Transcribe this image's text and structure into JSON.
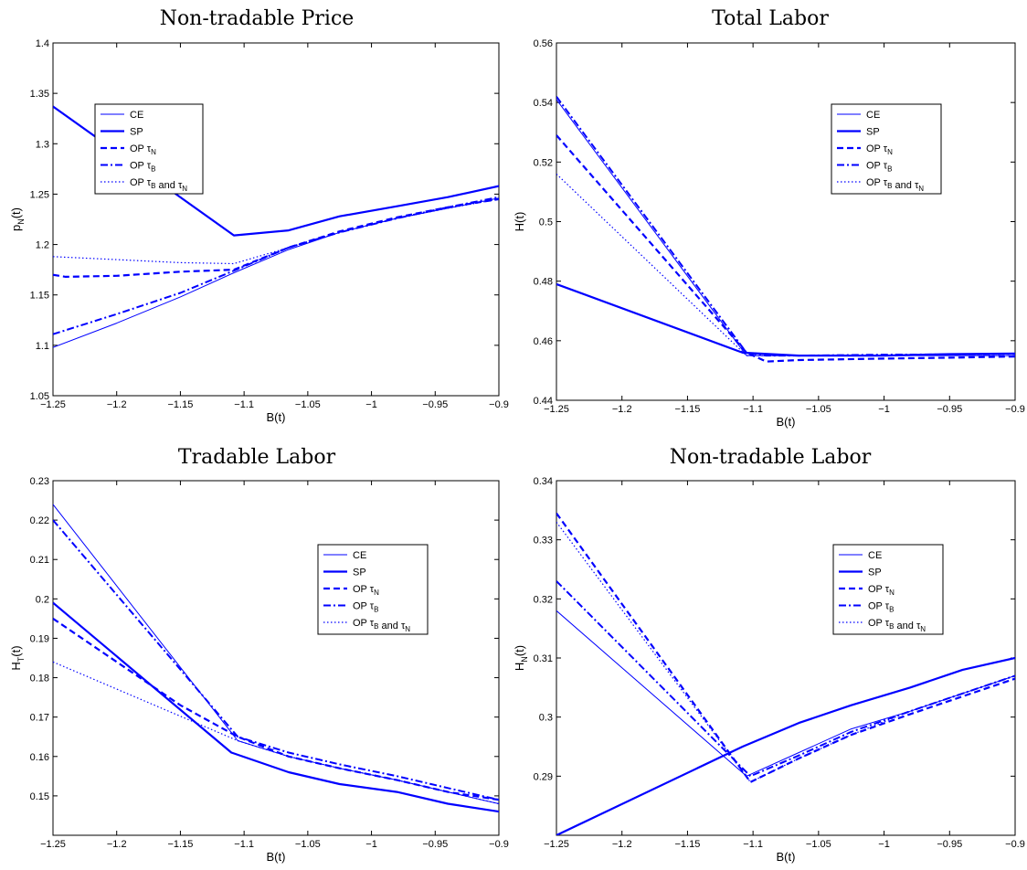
{
  "chart_data": [
    {
      "type": "line",
      "title": "Non-tradable Price",
      "xlabel": "B(t)",
      "ylabel": "p_N(t)",
      "xlim": [
        -1.25,
        -0.9
      ],
      "ylim": [
        1.05,
        1.4
      ],
      "xticks": [
        -1.25,
        -1.2,
        -1.15,
        -1.1,
        -1.05,
        -1,
        -0.95,
        -0.9
      ],
      "xtick_labels": [
        "−1.25",
        "−1.2",
        "−1.15",
        "−1.1",
        "−1.05",
        "−1",
        "−0.95",
        "−0.9"
      ],
      "yticks": [
        1.05,
        1.1,
        1.15,
        1.2,
        1.25,
        1.3,
        1.35,
        1.4
      ],
      "ytick_labels": [
        "1.05",
        "1.1",
        "1.15",
        "1.2",
        "1.25",
        "1.3",
        "1.35",
        "1.4"
      ],
      "legend_position": "top-left",
      "series": [
        {
          "name": "CE",
          "style": "thin",
          "x": [
            -1.25,
            -1.2,
            -1.15,
            -1.108,
            -1.065,
            -1.025,
            -0.98,
            -0.94,
            -0.9
          ],
          "y": [
            1.098,
            1.122,
            1.148,
            1.172,
            1.195,
            1.212,
            1.226,
            1.236,
            1.246
          ]
        },
        {
          "name": "SP",
          "style": "solid",
          "x": [
            -1.25,
            -1.108,
            -1.065,
            -1.025,
            -0.98,
            -0.94,
            -0.9
          ],
          "y": [
            1.337,
            1.209,
            1.214,
            1.228,
            1.238,
            1.247,
            1.258
          ]
        },
        {
          "name": "OP τN",
          "style": "dashed",
          "x": [
            -1.25,
            -1.24,
            -1.2,
            -1.15,
            -1.108,
            -1.065,
            -1.025,
            -0.98,
            -0.94,
            -0.9
          ],
          "y": [
            1.17,
            1.168,
            1.169,
            1.173,
            1.175,
            1.197,
            1.213,
            1.227,
            1.237,
            1.245
          ]
        },
        {
          "name": "OP τB",
          "style": "dashdot",
          "x": [
            -1.25,
            -1.2,
            -1.15,
            -1.108,
            -1.065,
            -1.025,
            -0.98,
            -0.94,
            -0.9
          ],
          "y": [
            1.111,
            1.131,
            1.152,
            1.174,
            1.197,
            1.212,
            1.226,
            1.237,
            1.247
          ]
        },
        {
          "name": "OP τB and τN",
          "style": "dotted",
          "x": [
            -1.25,
            -1.2,
            -1.15,
            -1.108,
            -1.065,
            -1.025,
            -0.98,
            -0.94,
            -0.9
          ],
          "y": [
            1.188,
            1.185,
            1.182,
            1.181,
            1.197,
            1.212,
            1.226,
            1.236,
            1.245
          ]
        }
      ]
    },
    {
      "type": "line",
      "title": "Total Labor",
      "xlabel": "B(t)",
      "ylabel": "H(t)",
      "xlim": [
        -1.25,
        -0.9
      ],
      "ylim": [
        0.44,
        0.56
      ],
      "xticks": [
        -1.25,
        -1.2,
        -1.15,
        -1.1,
        -1.05,
        -1,
        -0.95,
        -0.9
      ],
      "xtick_labels": [
        "−1.25",
        "−1.2",
        "−1.15",
        "−1.1",
        "−1.05",
        "−1",
        "−0.95",
        "−0.9"
      ],
      "yticks": [
        0.44,
        0.46,
        0.48,
        0.5,
        0.52,
        0.54,
        0.56
      ],
      "ytick_labels": [
        "0.44",
        "0.46",
        "0.48",
        "0.5",
        "0.52",
        "0.54",
        "0.56"
      ],
      "legend_position": "top-right",
      "series": [
        {
          "name": "CE",
          "style": "thin",
          "x": [
            -1.25,
            -1.105,
            -1.09,
            -1.065,
            -1,
            -0.95,
            -0.9
          ],
          "y": [
            0.541,
            0.455,
            0.455,
            0.455,
            0.455,
            0.455,
            0.455
          ]
        },
        {
          "name": "SP",
          "style": "solid",
          "x": [
            -1.25,
            -1.108,
            -1.065,
            -1,
            -0.95,
            -0.9
          ],
          "y": [
            0.479,
            0.456,
            0.455,
            0.455,
            0.4555,
            0.4557
          ]
        },
        {
          "name": "OP τN",
          "style": "dashed",
          "x": [
            -1.25,
            -1.105,
            -1.09,
            -1.065,
            -1,
            -0.95,
            -0.9
          ],
          "y": [
            0.529,
            0.456,
            0.453,
            0.4535,
            0.454,
            0.4543,
            0.4547
          ]
        },
        {
          "name": "OP τB",
          "style": "dashdot",
          "x": [
            -1.25,
            -1.105,
            -1.09,
            -1.065,
            -1,
            -0.95,
            -0.9
          ],
          "y": [
            0.542,
            0.456,
            0.455,
            0.455,
            0.4553,
            0.4554,
            0.4556
          ]
        },
        {
          "name": "OP τB and τN",
          "style": "dotted",
          "x": [
            -1.25,
            -1.105,
            -1.09,
            -1.065,
            -1,
            -0.95,
            -0.9
          ],
          "y": [
            0.516,
            0.455,
            0.455,
            0.455,
            0.455,
            0.4553,
            0.4555
          ]
        }
      ]
    },
    {
      "type": "line",
      "title": "Tradable Labor",
      "xlabel": "B(t)",
      "ylabel": "H_T(t)",
      "xlim": [
        -1.25,
        -0.9
      ],
      "ylim": [
        0.14,
        0.23
      ],
      "xticks": [
        -1.25,
        -1.2,
        -1.15,
        -1.1,
        -1.05,
        -1,
        -0.95,
        -0.9
      ],
      "xtick_labels": [
        "−1.25",
        "−1.2",
        "−1.15",
        "−1.1",
        "−1.05",
        "−1",
        "−0.95",
        "−0.9"
      ],
      "yticks": [
        0.15,
        0.16,
        0.17,
        0.18,
        0.19,
        0.2,
        0.21,
        0.22,
        0.23
      ],
      "ytick_labels": [
        "0.15",
        "0.16",
        "0.17",
        "0.18",
        "0.19",
        "0.2",
        "0.21",
        "0.22",
        "0.23"
      ],
      "legend_position": "top-right",
      "series": [
        {
          "name": "CE",
          "style": "thin",
          "x": [
            -1.25,
            -1.105,
            -1.065,
            -1.025,
            -0.98,
            -0.94,
            -0.9
          ],
          "y": [
            0.224,
            0.164,
            0.16,
            0.157,
            0.154,
            0.151,
            0.148
          ]
        },
        {
          "name": "SP",
          "style": "solid",
          "x": [
            -1.25,
            -1.11,
            -1.065,
            -1.025,
            -0.98,
            -0.94,
            -0.9
          ],
          "y": [
            0.199,
            0.161,
            0.156,
            0.153,
            0.151,
            0.148,
            0.146
          ]
        },
        {
          "name": "OP τN",
          "style": "dashed",
          "x": [
            -1.25,
            -1.15,
            -1.105,
            -1.065,
            -1.025,
            -0.98,
            -0.94,
            -0.9
          ],
          "y": [
            0.195,
            0.173,
            0.165,
            0.16,
            0.157,
            0.154,
            0.151,
            0.149
          ]
        },
        {
          "name": "OP τB",
          "style": "dashdot",
          "x": [
            -1.25,
            -1.105,
            -1.065,
            -1.025,
            -0.98,
            -0.94,
            -0.9
          ],
          "y": [
            0.22,
            0.165,
            0.161,
            0.158,
            0.155,
            0.152,
            0.149
          ]
        },
        {
          "name": "OP τB and τN",
          "style": "dotted",
          "x": [
            -1.25,
            -1.105,
            -1.065,
            -1.025,
            -0.98,
            -0.94,
            -0.9
          ],
          "y": [
            0.184,
            0.164,
            0.16,
            0.157,
            0.154,
            0.151,
            0.148
          ]
        }
      ]
    },
    {
      "type": "line",
      "title": "Non-tradable Labor",
      "xlabel": "B(t)",
      "ylabel": "H_N(t)",
      "xlim": [
        -1.25,
        -0.9
      ],
      "ylim": [
        0.28,
        0.34
      ],
      "xticks": [
        -1.25,
        -1.2,
        -1.15,
        -1.1,
        -1.05,
        -1,
        -0.95,
        -0.9
      ],
      "xtick_labels": [
        "−1.25",
        "−1.2",
        "−1.15",
        "−1.1",
        "−1.05",
        "−1",
        "−0.95",
        "−0.9"
      ],
      "yticks": [
        0.29,
        0.3,
        0.31,
        0.32,
        0.33,
        0.34
      ],
      "ytick_labels": [
        "0.29",
        "0.3",
        "0.31",
        "0.32",
        "0.33",
        "0.34"
      ],
      "legend_position": "top-right",
      "series": [
        {
          "name": "CE",
          "style": "thin",
          "x": [
            -1.25,
            -1.105,
            -1.065,
            -1.025,
            -0.98,
            -0.94,
            -0.9
          ],
          "y": [
            0.318,
            0.29,
            0.294,
            0.298,
            0.301,
            0.304,
            0.307
          ]
        },
        {
          "name": "SP",
          "style": "solid",
          "x": [
            -1.25,
            -1.108,
            -1.065,
            -1.025,
            -0.98,
            -0.94,
            -0.9
          ],
          "y": [
            0.28,
            0.295,
            0.299,
            0.302,
            0.305,
            0.308,
            0.31
          ]
        },
        {
          "name": "OP τN",
          "style": "dashed",
          "x": [
            -1.25,
            -1.102,
            -1.065,
            -1.025,
            -0.98,
            -0.94,
            -0.9
          ],
          "y": [
            0.3345,
            0.289,
            0.293,
            0.297,
            0.3005,
            0.3035,
            0.3065
          ]
        },
        {
          "name": "OP τB",
          "style": "dashdot",
          "x": [
            -1.25,
            -1.102,
            -1.065,
            -1.025,
            -0.98,
            -0.94,
            -0.9
          ],
          "y": [
            0.323,
            0.29,
            0.2935,
            0.2975,
            0.301,
            0.304,
            0.307
          ]
        },
        {
          "name": "OP τB and τN",
          "style": "dotted",
          "x": [
            -1.25,
            -1.102,
            -1.065,
            -1.025,
            -0.98,
            -0.94,
            -0.9
          ],
          "y": [
            0.333,
            0.289,
            0.293,
            0.297,
            0.301,
            0.304,
            0.307
          ]
        }
      ]
    }
  ],
  "style": {
    "line_color": "#0000ff",
    "axis_color": "#000000"
  }
}
